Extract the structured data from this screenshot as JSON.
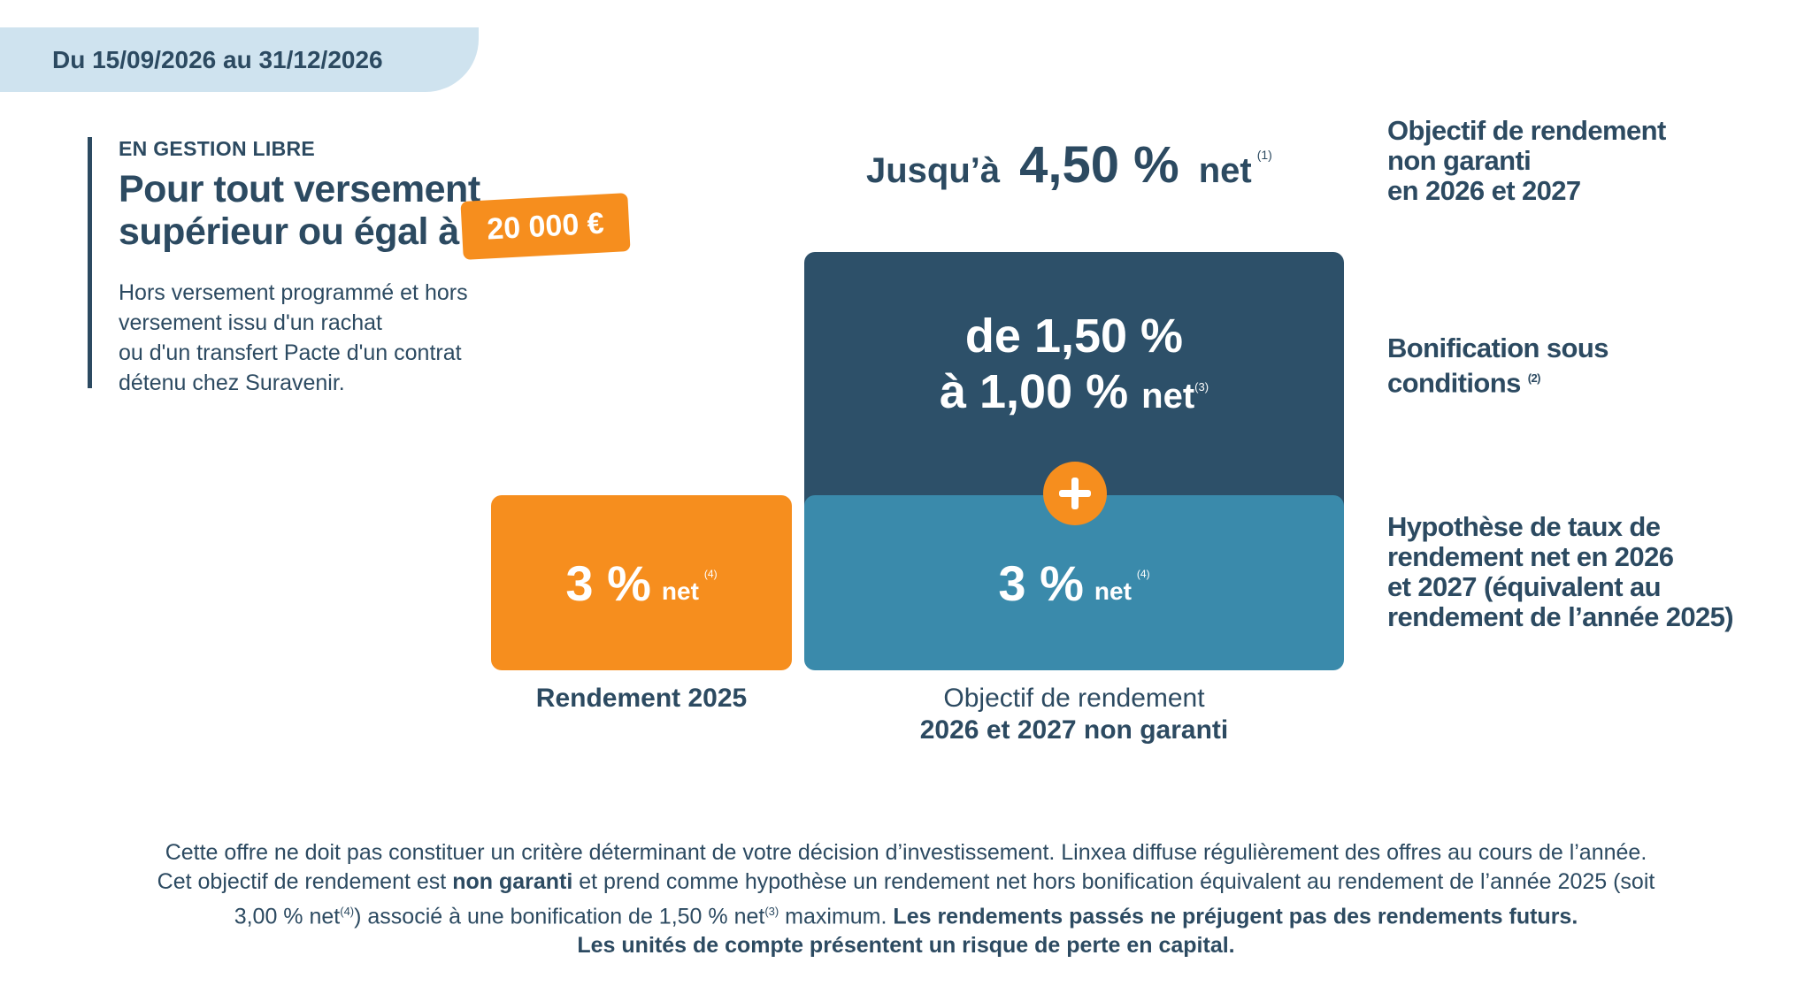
{
  "period": "Du 15/09/2026 au 31/12/2026",
  "left": {
    "kicker": "EN GESTION LIBRE",
    "title_line1": "Pour tout versement",
    "title_line2": "supérieur ou égal à",
    "amount": "20 000 €",
    "desc_line1": "Hors versement programmé et hors",
    "desc_line2": "versement issu d'un rachat",
    "desc_line3": "ou d'un transfert Pacte d'un contrat",
    "desc_line4": "détenu chez Suravenir."
  },
  "headline": {
    "lead": "Jusqu’à",
    "value": "4,50 %",
    "net": "net",
    "note": "(1)"
  },
  "bonus_box": {
    "line1": "de 1,50 %",
    "line2_value": "à 1,00 %",
    "line2_net": "net",
    "note": "(3)"
  },
  "blue_box": {
    "value": "3 %",
    "net": "net",
    "note": "(4)"
  },
  "orange_box": {
    "value": "3 %",
    "net": "net",
    "note": "(4)"
  },
  "captions": {
    "left": "Rendement 2025",
    "right_line1": "Objectif de rendement",
    "right_line2": "2026 et 2027 non garanti"
  },
  "right_labels": {
    "objective_line1": "Objectif de rendement",
    "objective_line2": "non garanti",
    "objective_line3": "en 2026 et 2027",
    "bonus_line1": "Bonification sous",
    "bonus_line2": "conditions",
    "bonus_note": "(2)",
    "hypothesis_line1": "Hypothèse de taux de",
    "hypothesis_line2": "rendement net en 2026",
    "hypothesis_line3": "et 2027 (équivalent au",
    "hypothesis_line4": "rendement de l’année 2025)"
  },
  "disclaimer": {
    "line1": "Cette offre ne doit pas constituer un critère déterminant de votre décision d’investissement. Linxea diffuse régulièrement des offres au cours de l’année.",
    "line2_a": "Cet objectif de rendement est",
    "line2_b": "non garanti",
    "line2_c": "et prend comme hypothèse un rendement net hors bonification équivalent au rendement de l’année 2025 (soit",
    "line3_a": "3,00 % net",
    "line3_note1": "(4)",
    "line3_b": ") associé à une bonification de 1,50 % net",
    "line3_note2": "(3)",
    "line3_c": "maximum.",
    "line3_d": "Les rendements passés ne préjugent pas des rendements futurs.",
    "line4": "Les unités de compte présentent un risque de perte en capital."
  },
  "colors": {
    "navy": "#2c4a61",
    "dark_box": "#2d5069",
    "blue_box": "#3a8aab",
    "orange": "#f68e1e",
    "banner": "#cfe3ef"
  },
  "icons": {
    "plus": "plus-icon"
  }
}
